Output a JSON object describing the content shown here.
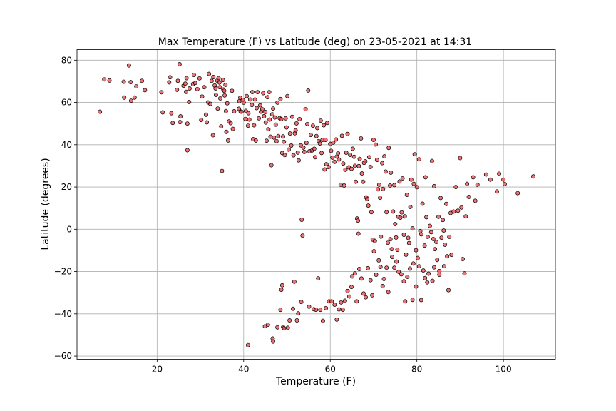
{
  "chart_data": {
    "type": "scatter",
    "title": "Max Temperature (F) vs Latitude (deg) on 23-05-2021 at 14:31",
    "xlabel": "Temperature (F)",
    "ylabel": "Latitude (degrees)",
    "xlim": [
      1.5,
      112
    ],
    "ylim": [
      -61.5,
      85
    ],
    "xticks": [
      20,
      40,
      60,
      80,
      100
    ],
    "yticks": [
      -60,
      -40,
      -20,
      0,
      20,
      40,
      60,
      80
    ],
    "grid": true,
    "marker_color": "#e8474b",
    "edge_color": "#000000",
    "points": [
      [
        6.8,
        55.6
      ],
      [
        7.8,
        70.9
      ],
      [
        9,
        70.4
      ],
      [
        12.3,
        69.8
      ],
      [
        12.4,
        62.3
      ],
      [
        13.5,
        77.5
      ],
      [
        13.9,
        69.6
      ],
      [
        14,
        60.8
      ],
      [
        14.8,
        62.3
      ],
      [
        15.2,
        67.6
      ],
      [
        16.5,
        70.2
      ],
      [
        17.2,
        65.8
      ],
      [
        21,
        64.8
      ],
      [
        21.3,
        55.3
      ],
      [
        22.8,
        69.5
      ],
      [
        23,
        71.9
      ],
      [
        23.3,
        54.9
      ],
      [
        23.6,
        50.3
      ],
      [
        24.6,
        66
      ],
      [
        24.8,
        70.2
      ],
      [
        25.2,
        78.1
      ],
      [
        25.3,
        50.7
      ],
      [
        25.4,
        53.4
      ],
      [
        26.1,
        67.9
      ],
      [
        26.5,
        68.9
      ],
      [
        26.7,
        65
      ],
      [
        26.8,
        71.5
      ],
      [
        27,
        50
      ],
      [
        27,
        37.4
      ],
      [
        27.4,
        60.2
      ],
      [
        27.5,
        66.6
      ],
      [
        28.3,
        68.7
      ],
      [
        28.5,
        73
      ],
      [
        28.8,
        69.2
      ],
      [
        29.3,
        66.3
      ],
      [
        29.8,
        71.4
      ],
      [
        30.2,
        51.7
      ],
      [
        30.4,
        62.8
      ],
      [
        30.9,
        67.2
      ],
      [
        31.3,
        54.2
      ],
      [
        31.5,
        50.6
      ],
      [
        31.8,
        60
      ],
      [
        32,
        73.5
      ],
      [
        32.3,
        59.3
      ],
      [
        32.6,
        70.2
      ],
      [
        32.9,
        44.5
      ],
      [
        33,
        72
      ],
      [
        33.3,
        68
      ],
      [
        33.5,
        66.6
      ],
      [
        33.6,
        63.5
      ],
      [
        33.9,
        70.3
      ],
      [
        34,
        57.1
      ],
      [
        34.2,
        71.5
      ],
      [
        34.4,
        69.4
      ],
      [
        34.5,
        67.2
      ],
      [
        34.6,
        61.9
      ],
      [
        34.8,
        48.7
      ],
      [
        35,
        27.6
      ],
      [
        35.2,
        70.6
      ],
      [
        35.3,
        66.1
      ],
      [
        35.5,
        65.5
      ],
      [
        35.6,
        63.3
      ],
      [
        35.8,
        68.3
      ],
      [
        35.9,
        55.9
      ],
      [
        36,
        46.1
      ],
      [
        36.2,
        59.6
      ],
      [
        36.4,
        42
      ],
      [
        36.6,
        51
      ],
      [
        37,
        50.2
      ],
      [
        37.3,
        65.5
      ],
      [
        37.5,
        47.5
      ],
      [
        37.8,
        55.8
      ],
      [
        38.9,
        57
      ],
      [
        39,
        60.6
      ],
      [
        39.2,
        62.2
      ],
      [
        39.3,
        55.7
      ],
      [
        39.5,
        55.6
      ],
      [
        39.8,
        61.2
      ],
      [
        40,
        59.9
      ],
      [
        40.4,
        52.2
      ],
      [
        40.5,
        56
      ],
      [
        40.7,
        63
      ],
      [
        41,
        49
      ],
      [
        41.1,
        54.9
      ],
      [
        41.3,
        51.9
      ],
      [
        41.5,
        61.4
      ],
      [
        41.9,
        58.8
      ],
      [
        42,
        64.9
      ],
      [
        42.2,
        42.6
      ],
      [
        42.4,
        49.2
      ],
      [
        42.6,
        61.4
      ],
      [
        42.8,
        42
      ],
      [
        43,
        57.3
      ],
      [
        43.2,
        64.9
      ],
      [
        43.5,
        52.5
      ],
      [
        43.8,
        58.6
      ],
      [
        44,
        55.6
      ],
      [
        44.3,
        56.8
      ],
      [
        44.5,
        64.4
      ],
      [
        44.7,
        53.5
      ],
      [
        45,
        55.5
      ],
      [
        45.1,
        50.5
      ],
      [
        45.3,
        41.9
      ],
      [
        45.5,
        62.5
      ],
      [
        45.7,
        47.3
      ],
      [
        45.9,
        64.9
      ],
      [
        46,
        51.9
      ],
      [
        46.2,
        43.8
      ],
      [
        46.4,
        30.3
      ],
      [
        46.6,
        54.4
      ],
      [
        46.8,
        57.1
      ],
      [
        47,
        43.4
      ],
      [
        47.2,
        52.9
      ],
      [
        47.4,
        49.5
      ],
      [
        47.6,
        41.7
      ],
      [
        47.8,
        59.9
      ],
      [
        48,
        44.1
      ],
      [
        48.3,
        52.6
      ],
      [
        48.5,
        61.6
      ],
      [
        48.7,
        52.1
      ],
      [
        48.9,
        36.1
      ],
      [
        49.1,
        43.9
      ],
      [
        49.3,
        41.4
      ],
      [
        49.5,
        35.1
      ],
      [
        49.7,
        52.5
      ],
      [
        49.9,
        48.2
      ],
      [
        50.1,
        63
      ],
      [
        50.4,
        37.7
      ],
      [
        50.7,
        45.3
      ],
      [
        51,
        39.6
      ],
      [
        51.2,
        53.2
      ],
      [
        51.5,
        35
      ],
      [
        51.8,
        45.4
      ],
      [
        52,
        46.8
      ],
      [
        52.2,
        50.1
      ],
      [
        52.5,
        36.3
      ],
      [
        52.7,
        32.6
      ],
      [
        52.9,
        52.1
      ],
      [
        53.2,
        39.7
      ],
      [
        53.4,
        4.5
      ],
      [
        53.6,
        -3
      ],
      [
        53.8,
        38.6
      ],
      [
        54,
        36.6
      ],
      [
        54.3,
        56.8
      ],
      [
        54.5,
        40.9
      ],
      [
        54.7,
        49.8
      ],
      [
        54.9,
        65.6
      ],
      [
        55.2,
        36.9
      ],
      [
        55.5,
        44.6
      ],
      [
        55.8,
        37.3
      ],
      [
        56,
        49
      ],
      [
        56.3,
        38.1
      ],
      [
        56.5,
        34.1
      ],
      [
        56.8,
        44.1
      ],
      [
        57,
        47.9
      ],
      [
        57.3,
        41.7
      ],
      [
        57.6,
        40.6
      ],
      [
        57.8,
        51.4
      ],
      [
        58,
        36.1
      ],
      [
        58.2,
        42.3
      ],
      [
        58.5,
        49.2
      ],
      [
        58.7,
        28.3
      ],
      [
        58.9,
        42.3
      ],
      [
        59.1,
        30.8
      ],
      [
        59.3,
        50.3
      ],
      [
        59.6,
        29.4
      ],
      [
        60,
        40.4
      ],
      [
        60.2,
        37.1
      ],
      [
        60.5,
        33.9
      ],
      [
        60.7,
        41
      ],
      [
        61,
        31.9
      ],
      [
        61.3,
        42.5
      ],
      [
        61.5,
        34.4
      ],
      [
        61.8,
        36
      ],
      [
        62,
        33
      ],
      [
        62.4,
        21.1
      ],
      [
        62.7,
        44.2
      ],
      [
        63,
        31.1
      ],
      [
        63.2,
        20.7
      ],
      [
        63.5,
        28.2
      ],
      [
        63.7,
        36.2
      ],
      [
        64,
        45.1
      ],
      [
        64.3,
        29.3
      ],
      [
        64.6,
        35.2
      ],
      [
        64.9,
        28.6
      ],
      [
        65.2,
        38.1
      ],
      [
        65.5,
        34.3
      ],
      [
        65.7,
        30
      ],
      [
        65.9,
        22.5
      ],
      [
        66.2,
        5.1
      ],
      [
        66.4,
        4.1
      ],
      [
        66.6,
        29.9
      ],
      [
        66.8,
        33.3
      ],
      [
        67.1,
        43
      ],
      [
        67.3,
        26.4
      ],
      [
        67.6,
        22.5
      ],
      [
        67.8,
        31.4
      ],
      [
        68.1,
        32.2
      ],
      [
        68.3,
        15.1
      ],
      [
        68.5,
        14.4
      ],
      [
        68.8,
        11.2
      ],
      [
        69,
        34.1
      ],
      [
        69.3,
        29.5
      ],
      [
        69.5,
        8.1
      ],
      [
        69.8,
        -4.9
      ],
      [
        70,
        42.3
      ],
      [
        70.3,
        -5.5
      ],
      [
        70.5,
        40.1
      ],
      [
        70.8,
        32.8
      ],
      [
        71,
        18.9
      ],
      [
        71.3,
        21.1
      ],
      [
        71.5,
        14.9
      ],
      [
        71.7,
        -3.5
      ],
      [
        72,
        31.3
      ],
      [
        72.2,
        19.1
      ],
      [
        72.5,
        34.5
      ],
      [
        72.8,
        27.3
      ],
      [
        73,
        8.1
      ],
      [
        73.3,
        -6.4
      ],
      [
        73.5,
        38.5
      ],
      [
        73.8,
        20.7
      ],
      [
        74,
        26.8
      ],
      [
        74.2,
        -9.4
      ],
      [
        74.5,
        8.4
      ],
      [
        74.8,
        20.9
      ],
      [
        75,
        2.5
      ],
      [
        75.2,
        -3.9
      ],
      [
        75.5,
        -9.7
      ],
      [
        75.7,
        5.9
      ],
      [
        76,
        22.6
      ],
      [
        76.2,
        5.5
      ],
      [
        76.5,
        8
      ],
      [
        76.7,
        24.1
      ],
      [
        77,
        -2.6
      ],
      [
        77.2,
        6.1
      ],
      [
        77.5,
        -12
      ],
      [
        77.7,
        16.3
      ],
      [
        78,
        -4.1
      ],
      [
        78.2,
        -6.5
      ],
      [
        78.5,
        10.6
      ],
      [
        78.7,
        23.5
      ],
      [
        79,
        0.4
      ],
      [
        79.3,
        21.5
      ],
      [
        79.5,
        35.5
      ],
      [
        79.8,
        -9.9
      ],
      [
        80,
        19.9
      ],
      [
        80.2,
        -13.6
      ],
      [
        80.5,
        33.1
      ],
      [
        80.8,
        -0.9
      ],
      [
        81,
        -2.4
      ],
      [
        81.3,
        12.1
      ],
      [
        81.5,
        -19.5
      ],
      [
        81.8,
        -7.7
      ],
      [
        82,
        24.6
      ],
      [
        82.2,
        5.7
      ],
      [
        82.5,
        -3.6
      ],
      [
        82.7,
        -21
      ],
      [
        83,
        1.6
      ],
      [
        83.3,
        -1.4
      ],
      [
        83.5,
        32.3
      ],
      [
        83.8,
        -4.6
      ],
      [
        84,
        20.4
      ],
      [
        84.2,
        -9.4
      ],
      [
        84.5,
        -6
      ],
      [
        84.7,
        -14.5
      ],
      [
        85,
        5.9
      ],
      [
        85.2,
        -19.8
      ],
      [
        85.5,
        14.8
      ],
      [
        85.7,
        -4
      ],
      [
        86,
        4.4
      ],
      [
        86.2,
        -0.6
      ],
      [
        86.5,
        -7.3
      ],
      [
        86.8,
        12
      ],
      [
        87,
        -12.8
      ],
      [
        87.3,
        -28.8
      ],
      [
        87.5,
        -3.6
      ],
      [
        87.8,
        7.7
      ],
      [
        88,
        -12.1
      ],
      [
        88.5,
        8.4
      ],
      [
        89,
        20
      ],
      [
        89.5,
        8.8
      ],
      [
        90,
        33.7
      ],
      [
        90.3,
        10.3
      ],
      [
        90.6,
        -14.1
      ],
      [
        91,
        -20.9
      ],
      [
        91.3,
        6.1
      ],
      [
        91.6,
        21.5
      ],
      [
        92,
        15.3
      ],
      [
        93,
        24.6
      ],
      [
        93.5,
        13.5
      ],
      [
        94,
        21.1
      ],
      [
        96,
        25.9
      ],
      [
        97,
        23.5
      ],
      [
        98.5,
        17.9
      ],
      [
        99,
        26.3
      ],
      [
        100,
        23.5
      ],
      [
        100.3,
        21.4
      ],
      [
        103.3,
        17.1
      ],
      [
        106.9,
        25
      ]
    ],
    "south_points": [
      [
        41,
        -54.8
      ],
      [
        44.9,
        -45.9
      ],
      [
        45.6,
        -45.2
      ],
      [
        46.7,
        -51.7
      ],
      [
        46.8,
        -53.1
      ],
      [
        47.8,
        -46.4
      ],
      [
        48.5,
        -38.1
      ],
      [
        48.7,
        -28.6
      ],
      [
        48.9,
        -26.5
      ],
      [
        49.1,
        -46.3
      ],
      [
        49.3,
        -46.8
      ],
      [
        50.2,
        -46.6
      ],
      [
        50.6,
        -43.1
      ],
      [
        51.4,
        -37.6
      ],
      [
        51.7,
        -24.8
      ],
      [
        52.3,
        -43.1
      ],
      [
        52.6,
        -39.8
      ],
      [
        53.3,
        -34.4
      ],
      [
        55.1,
        -36.6
      ],
      [
        56.2,
        -37.8
      ],
      [
        56.7,
        -38.1
      ],
      [
        57.2,
        -23.2
      ],
      [
        57.7,
        -38.1
      ],
      [
        58.3,
        -43.3
      ],
      [
        59,
        -37.3
      ],
      [
        59.7,
        -34.1
      ],
      [
        60.3,
        -34.1
      ],
      [
        61,
        -35.7
      ],
      [
        61.5,
        -42.7
      ],
      [
        62,
        -37.9
      ],
      [
        62.5,
        -34.6
      ],
      [
        62.9,
        -38.1
      ],
      [
        63.4,
        -33.8
      ],
      [
        64,
        -29.2
      ],
      [
        64.4,
        -31.8
      ],
      [
        64.9,
        -27.3
      ],
      [
        65.1,
        -22.3
      ],
      [
        65.7,
        -20.9
      ],
      [
        66.1,
        -34.1
      ],
      [
        66.5,
        -2.1
      ],
      [
        66.7,
        -18.8
      ],
      [
        67.2,
        -23.3
      ],
      [
        67.7,
        -30.4
      ],
      [
        68.2,
        -32.2
      ],
      [
        68.7,
        -18.4
      ],
      [
        69.3,
        -24.1
      ],
      [
        69.7,
        -31.2
      ],
      [
        70.1,
        -10.4
      ],
      [
        70.6,
        -21.5
      ],
      [
        71.2,
        -14.7
      ],
      [
        71.6,
        -17.8
      ],
      [
        72.1,
        -26.9
      ],
      [
        72.4,
        -23.5
      ],
      [
        73,
        -18.2
      ],
      [
        73.4,
        -29.7
      ],
      [
        73.9,
        -4.7
      ],
      [
        74.3,
        -13.1
      ],
      [
        74.8,
        -18.2
      ],
      [
        75.3,
        -15.3
      ],
      [
        75.8,
        -20.1
      ],
      [
        76.4,
        -21.3
      ],
      [
        77,
        -24.6
      ],
      [
        77.3,
        -34.1
      ],
      [
        77.8,
        -22.5
      ],
      [
        78.4,
        -18.6
      ],
      [
        79,
        -33.4
      ],
      [
        79.2,
        -16.2
      ],
      [
        79.8,
        -27.1
      ],
      [
        80.5,
        -17.5
      ],
      [
        81,
        -33.5
      ],
      [
        81.9,
        -23.1
      ],
      [
        82.4,
        -25.1
      ],
      [
        83.6,
        -24.4
      ],
      [
        84,
        -18
      ],
      [
        85.2,
        -21.5
      ],
      [
        86.3,
        -17.5
      ]
    ]
  }
}
